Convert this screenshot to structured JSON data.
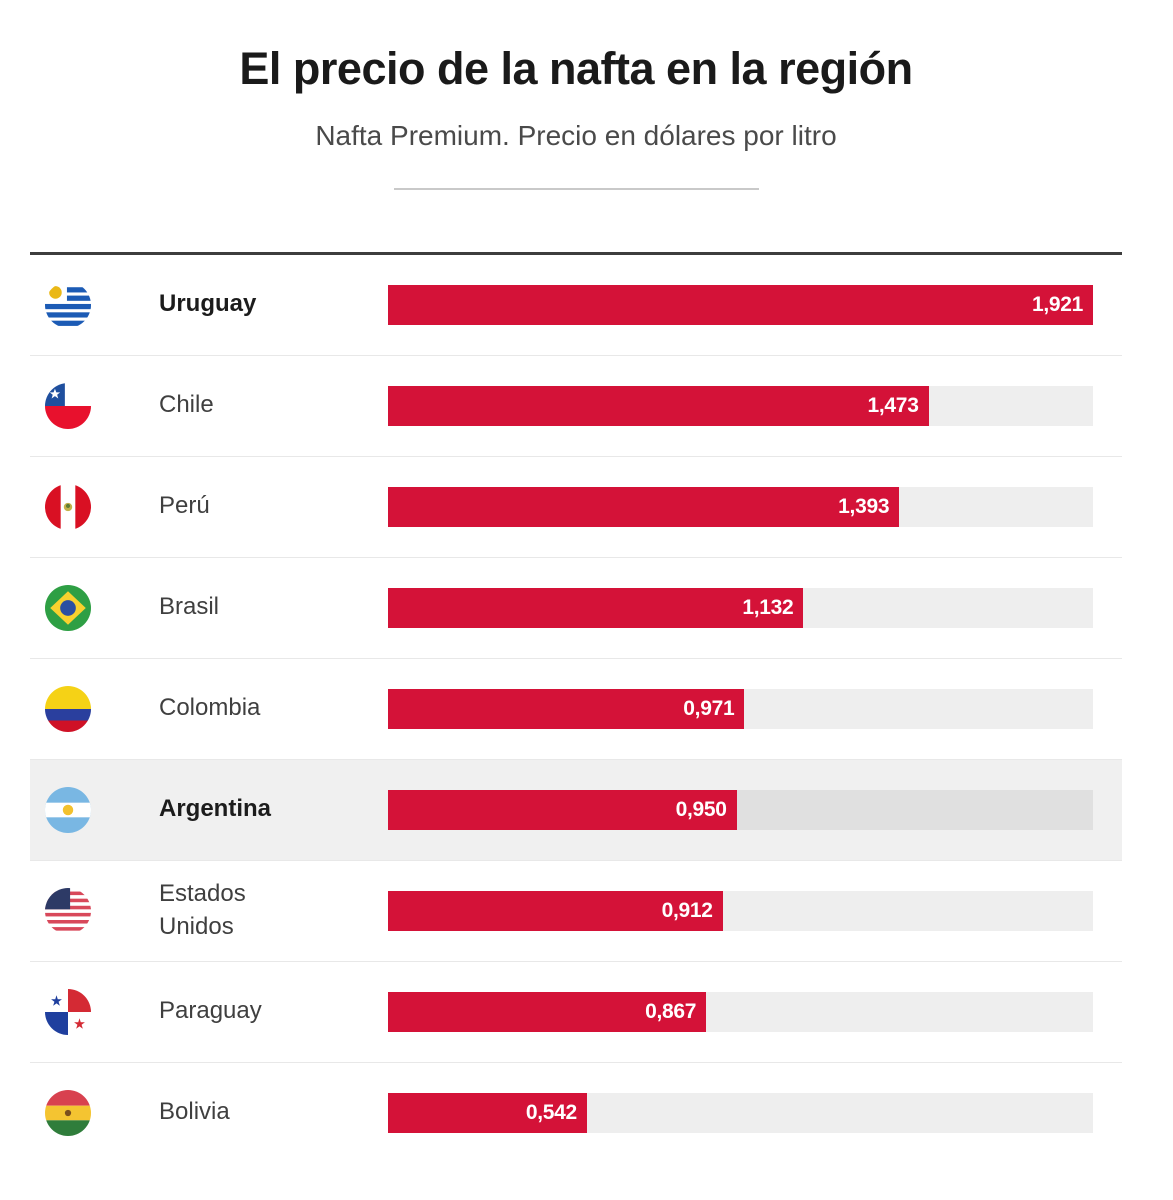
{
  "title": "El precio de la nafta en la región",
  "subtitle": "Nafta Premium. Precio en dólares por litro",
  "colors": {
    "bar": "#d41238",
    "track": "#eeeeee",
    "highlight_row_bg": "#f0f0f0",
    "highlight_track": "#e0e0e0",
    "top_rule": "#3d3d3d",
    "divider": "#e8e8e8",
    "value_text": "#ffffff"
  },
  "chart_data": {
    "type": "bar",
    "orientation": "horizontal",
    "title": "El precio de la nafta en la región",
    "subtitle": "Nafta Premium. Precio en dólares por litro",
    "unit": "dólares por litro",
    "categories": [
      "Uruguay",
      "Chile",
      "Perú",
      "Brasil",
      "Colombia",
      "Argentina",
      "Estados Unidos",
      "Paraguay",
      "Bolivia"
    ],
    "values": [
      1.921,
      1.473,
      1.393,
      1.132,
      0.971,
      0.95,
      0.912,
      0.867,
      0.542
    ],
    "value_labels": [
      "1,921",
      "1,473",
      "1,393",
      "1,132",
      "0,971",
      "0,950",
      "0,912",
      "0,867",
      "0,542"
    ],
    "xlim": [
      0,
      1.921
    ],
    "grid": false,
    "legend": false,
    "bold_labels": [
      "Uruguay",
      "Argentina"
    ],
    "highlighted_row": "Argentina"
  },
  "rows": [
    {
      "country": "Uruguay",
      "value": 1.921,
      "value_label": "1,921"
    },
    {
      "country": "Chile",
      "value": 1.473,
      "value_label": "1,473"
    },
    {
      "country": "Perú",
      "value": 1.393,
      "value_label": "1,393"
    },
    {
      "country": "Brasil",
      "value": 1.132,
      "value_label": "1,132"
    },
    {
      "country": "Colombia",
      "value": 0.971,
      "value_label": "0,971"
    },
    {
      "country": "Argentina",
      "value": 0.95,
      "value_label": "0,950"
    },
    {
      "country": "Estados Unidos",
      "value": 0.912,
      "value_label": "0,912"
    },
    {
      "country": "Paraguay",
      "value": 0.867,
      "value_label": "0,867"
    },
    {
      "country": "Bolivia",
      "value": 0.542,
      "value_label": "0,542"
    }
  ]
}
